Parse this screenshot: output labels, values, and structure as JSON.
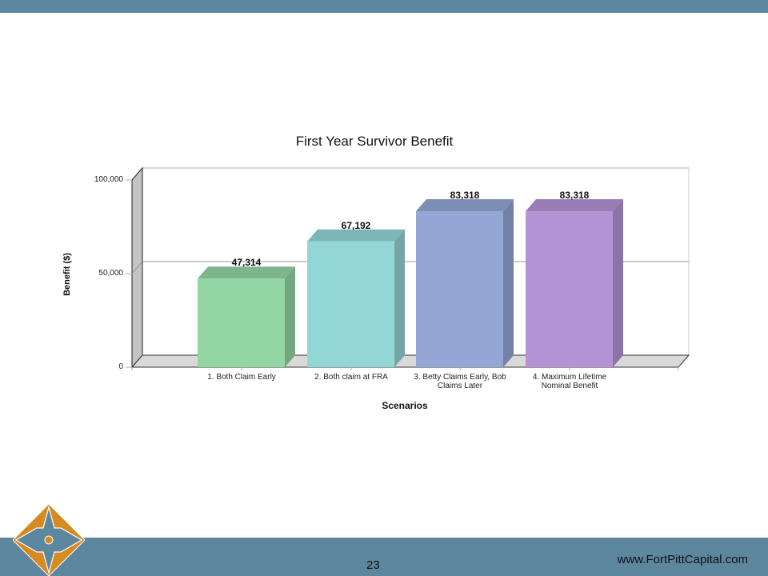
{
  "slide": {
    "page_number": "23",
    "website": "www.FortPittCapital.com",
    "logo_icon": "fort-pitt-diamond-logo-icon",
    "colors": {
      "bar": "#5d869f",
      "logo_orange": "#d68a20",
      "logo_blue": "#5d869f"
    }
  },
  "chart_data": {
    "type": "bar",
    "title": "First Year Survivor Benefit",
    "xlabel": "Scenarios",
    "ylabel": "Benefit ($)",
    "ylim": [
      0,
      100000
    ],
    "yticks": [
      "0",
      "50,000",
      "100,000"
    ],
    "grid": true,
    "style": "3d",
    "categories": [
      "1.  Both Claim Early",
      "2.  Both claim at FRA",
      "3.  Betty Claims Early, Bob Claims Later",
      "4.  Maximum Lifetime Nominal Benefit"
    ],
    "category_lines": [
      [
        "1.  Both Claim Early"
      ],
      [
        "2.  Both claim at FRA"
      ],
      [
        "3.  Betty Claims Early, Bob",
        "Claims Later"
      ],
      [
        "4.  Maximum Lifetime",
        "Nominal Benefit"
      ]
    ],
    "values": [
      47314,
      67192,
      83318,
      83318
    ],
    "value_labels": [
      "47,314",
      "67,192",
      "83,318",
      "83,318"
    ],
    "colors": [
      "#93d6a3",
      "#93d6d6",
      "#93a6d6",
      "#b393d6"
    ]
  }
}
